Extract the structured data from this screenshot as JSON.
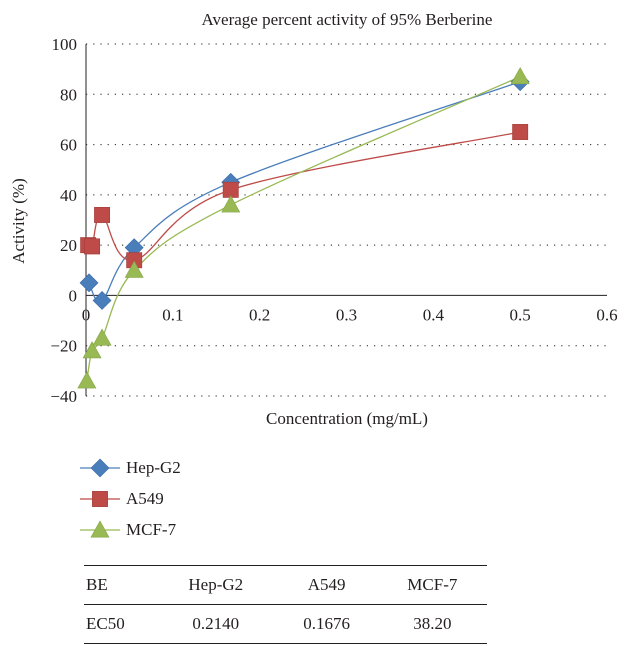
{
  "chart_data": {
    "type": "line",
    "title": "Average percent activity of 95% Berberine",
    "xlabel": "Concentration (mg/mL)",
    "ylabel": "Activity (%)",
    "xlim": [
      0,
      0.6
    ],
    "ylim": [
      -40,
      100
    ],
    "x_ticks": [
      0,
      0.1,
      0.2,
      0.3,
      0.4,
      0.5,
      0.6
    ],
    "x_tick_labels": [
      "0",
      "0.1",
      "0.2",
      "0.3",
      "0.4",
      "0.5",
      "0.6"
    ],
    "y_ticks": [
      -40,
      -20,
      0,
      20,
      40,
      60,
      80,
      100
    ],
    "y_tick_labels": [
      "−40",
      "−20",
      "0",
      "20",
      "40",
      "60",
      "80",
      "100"
    ],
    "grid": "horizontal dotted",
    "legend_position": "bottom-left",
    "series": [
      {
        "name": "Hep-G2",
        "marker": "diamond",
        "color": "#4a7ebb",
        "points": [
          [
            0.0035,
            5
          ],
          [
            0.0185,
            -2
          ],
          [
            0.0555,
            19
          ],
          [
            0.1667,
            45
          ],
          [
            0.5,
            85
          ]
        ]
      },
      {
        "name": "A549",
        "marker": "square",
        "color": "#be4b48",
        "points": [
          [
            0.0025,
            20
          ],
          [
            0.007,
            19.5
          ],
          [
            0.0185,
            32
          ],
          [
            0.0555,
            14
          ],
          [
            0.1667,
            42
          ],
          [
            0.5,
            65
          ]
        ]
      },
      {
        "name": "MCF-7",
        "marker": "triangle",
        "color": "#98b954",
        "points": [
          [
            0.001,
            -34
          ],
          [
            0.007,
            -22
          ],
          [
            0.0185,
            -17
          ],
          [
            0.0555,
            10
          ],
          [
            0.1667,
            36
          ],
          [
            0.5,
            87
          ]
        ]
      }
    ]
  },
  "table": {
    "headers": [
      "BE",
      "Hep-G2",
      "A549",
      "MCF-7"
    ],
    "rows": [
      [
        "EC50",
        "0.2140",
        "0.1676",
        "38.20"
      ]
    ]
  }
}
